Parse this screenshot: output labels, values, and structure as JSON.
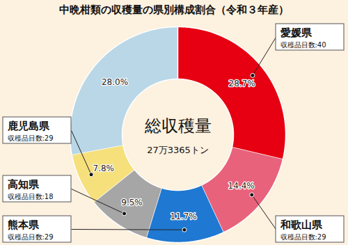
{
  "chart_data": {
    "type": "donut",
    "title": "中晩柑類の収穫量の県別構成割合（令和３年産）",
    "categories": [
      "愛媛県",
      "和歌山県",
      "熊本県",
      "高知県",
      "鹿児島県",
      null
    ],
    "sublabels": [
      "収穫品目数:40",
      "収穫品目数:29",
      "収穫品目数:29",
      "収穫品目数:18",
      "収穫品目数:29",
      null
    ],
    "values": [
      28.7,
      14.4,
      11.7,
      9.5,
      7.8,
      28.0
    ],
    "value_labels": [
      "28.7%",
      "14.4%",
      "11.7%",
      "9.5%",
      "7.8%",
      "28.0%"
    ],
    "colors": [
      "#e60012",
      "#e8627c",
      "#1f78d1",
      "#a6a6a6",
      "#f6e07c",
      "#b9d7e6"
    ],
    "data_labels": true,
    "center_label": "総収穫量",
    "center_value": "27万3365トン"
  }
}
